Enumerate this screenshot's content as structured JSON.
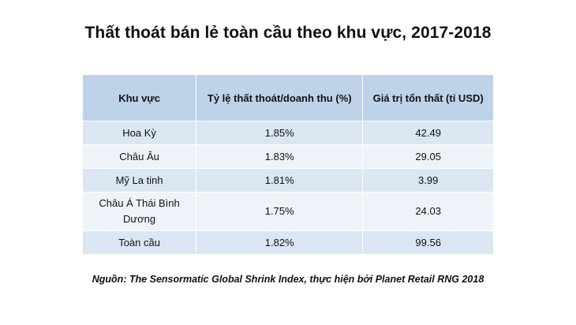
{
  "title": "Thất thoát bán lẻ toàn cầu theo khu vực, 2017-2018",
  "table": {
    "headers": [
      "Khu vực",
      "Tỷ lệ thất thoát/doanh thu (%)",
      "Giá trị tổn thất (tỉ USD)"
    ],
    "rows": [
      {
        "region": "Hoa Kỳ",
        "rate": "1.85%",
        "value": "42.49"
      },
      {
        "region": "Châu Âu",
        "rate": "1.83%",
        "value": "29.05"
      },
      {
        "region": "Mỹ La tinh",
        "rate": "1.81%",
        "value": "3.99"
      },
      {
        "region": "Châu Á Thái Bình Dương",
        "rate": "1.75%",
        "value": "24.03"
      },
      {
        "region": "Toàn cầu",
        "rate": "1.82%",
        "value": "99.56"
      }
    ]
  },
  "source": "Nguồn: The Sensormatic Global Shrink Index, thực hiện bởi Planet Retail RNG 2018",
  "colors": {
    "header_bg": "#bed3ea",
    "row_odd_bg": "#dbe6f3",
    "row_even_bg": "#eef3f9"
  }
}
